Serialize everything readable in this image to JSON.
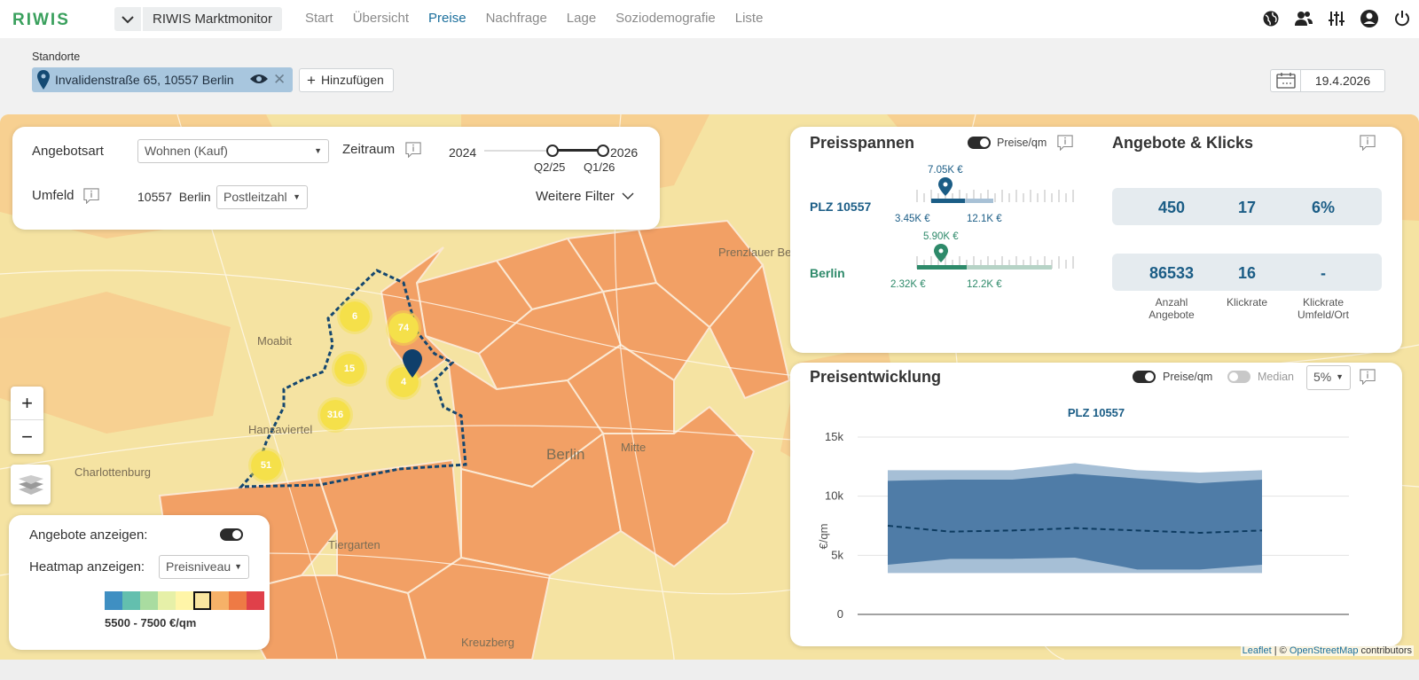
{
  "app": {
    "logo": "RIWIS",
    "title": "RIWIS Marktmonitor",
    "nav": [
      "Start",
      "Übersicht",
      "Preise",
      "Nachfrage",
      "Lage",
      "Soziodemografie",
      "Liste"
    ],
    "active_nav": "Preise",
    "icons": [
      "globe-icon",
      "users-icon",
      "sliders-icon",
      "account-icon",
      "power-icon"
    ]
  },
  "locations": {
    "label": "Standorte",
    "chip": "Invalidenstraße 65, 10557 Berlin",
    "add": "Hinzufügen",
    "date": "19.4.2026"
  },
  "filter": {
    "angebotsart_label": "Angebotsart",
    "angebotsart_value": "Wohnen (Kauf)",
    "zeitraum_label": "Zeitraum",
    "year_start": "2024",
    "year_end": "2026",
    "range_from": "Q2/25",
    "range_to": "Q1/26",
    "umfeld_label": "Umfeld",
    "umfeld_value": "10557  Berlin",
    "umfeld_type": "Postleitzahl",
    "more_filters": "Weitere Filter"
  },
  "preisspannen": {
    "title": "Preisspannen",
    "toggle_label": "Preise/qm",
    "rows": [
      {
        "name": "PLZ 10557",
        "median": "7.05K €",
        "min": "3.45K €",
        "max": "12.1K €",
        "color": "#1b5d86"
      },
      {
        "name": "Berlin",
        "median": "5.90K €",
        "min": "2.32K €",
        "max": "12.2K €",
        "color": "#2e8a6a"
      }
    ]
  },
  "angebote": {
    "title": "Angebote & Klicks",
    "rows": [
      [
        "450",
        "17",
        "6%"
      ],
      [
        "86533",
        "16",
        "-"
      ]
    ],
    "captions": [
      "Anzahl Angebote",
      "Klickrate",
      "Klickrate Umfeld/Ort"
    ]
  },
  "trend": {
    "title": "Preisentwicklung",
    "toggle1": "Preise/qm",
    "toggle2": "Median",
    "percent": "5%"
  },
  "chart_data": {
    "type": "area",
    "title": "PLZ 10557",
    "ylabel": "€/qm",
    "ylim": [
      0,
      15000
    ],
    "yticks": [
      "0",
      "5k",
      "10k",
      "15k"
    ],
    "x_index": [
      0,
      1,
      2,
      3,
      4,
      5,
      6
    ],
    "series": [
      {
        "upper": [
          12200,
          12200,
          12200,
          12800,
          12200,
          12000,
          12200
        ],
        "lower": [
          3500,
          3500,
          3500,
          3500,
          3500,
          3500,
          3500
        ],
        "color": "#a6bfd6"
      },
      {
        "upper": [
          11300,
          11400,
          11400,
          11900,
          11500,
          11100,
          11400
        ],
        "lower": [
          4200,
          4700,
          4700,
          4800,
          3800,
          3800,
          4200
        ],
        "color": "#4f7ca7"
      },
      {
        "values": [
          7500,
          7000,
          7100,
          7300,
          7100,
          6900,
          7100
        ],
        "color": "#0d3b60",
        "style": "dashed"
      }
    ]
  },
  "map": {
    "clusters": [
      "6",
      "74",
      "15",
      "4",
      "316",
      "51"
    ],
    "labels": [
      "Moabit",
      "Berlin",
      "Mitte",
      "Tiergarten",
      "Charlottenburg",
      "Hansaviertel",
      "Kreuzberg",
      "Prenzlauer Berg"
    ],
    "zoom_in": "+",
    "zoom_out": "−",
    "legend": {
      "show_offers": "Angebote anzeigen:",
      "show_heatmap": "Heatmap anzeigen:",
      "heatmap_value": "Preisniveau",
      "range": "5500 - 7500 €/qm",
      "colors": [
        "#3f8fc2",
        "#63bfae",
        "#a9dca0",
        "#e6f0a8",
        "#fff5a8",
        "#f9e6a0",
        "#f6b168",
        "#ee7a45",
        "#e0404a"
      ]
    },
    "attribution_leaflet": "Leaflet",
    "attribution_osm": "OpenStreetMap",
    "attribution_text": " contributors"
  }
}
